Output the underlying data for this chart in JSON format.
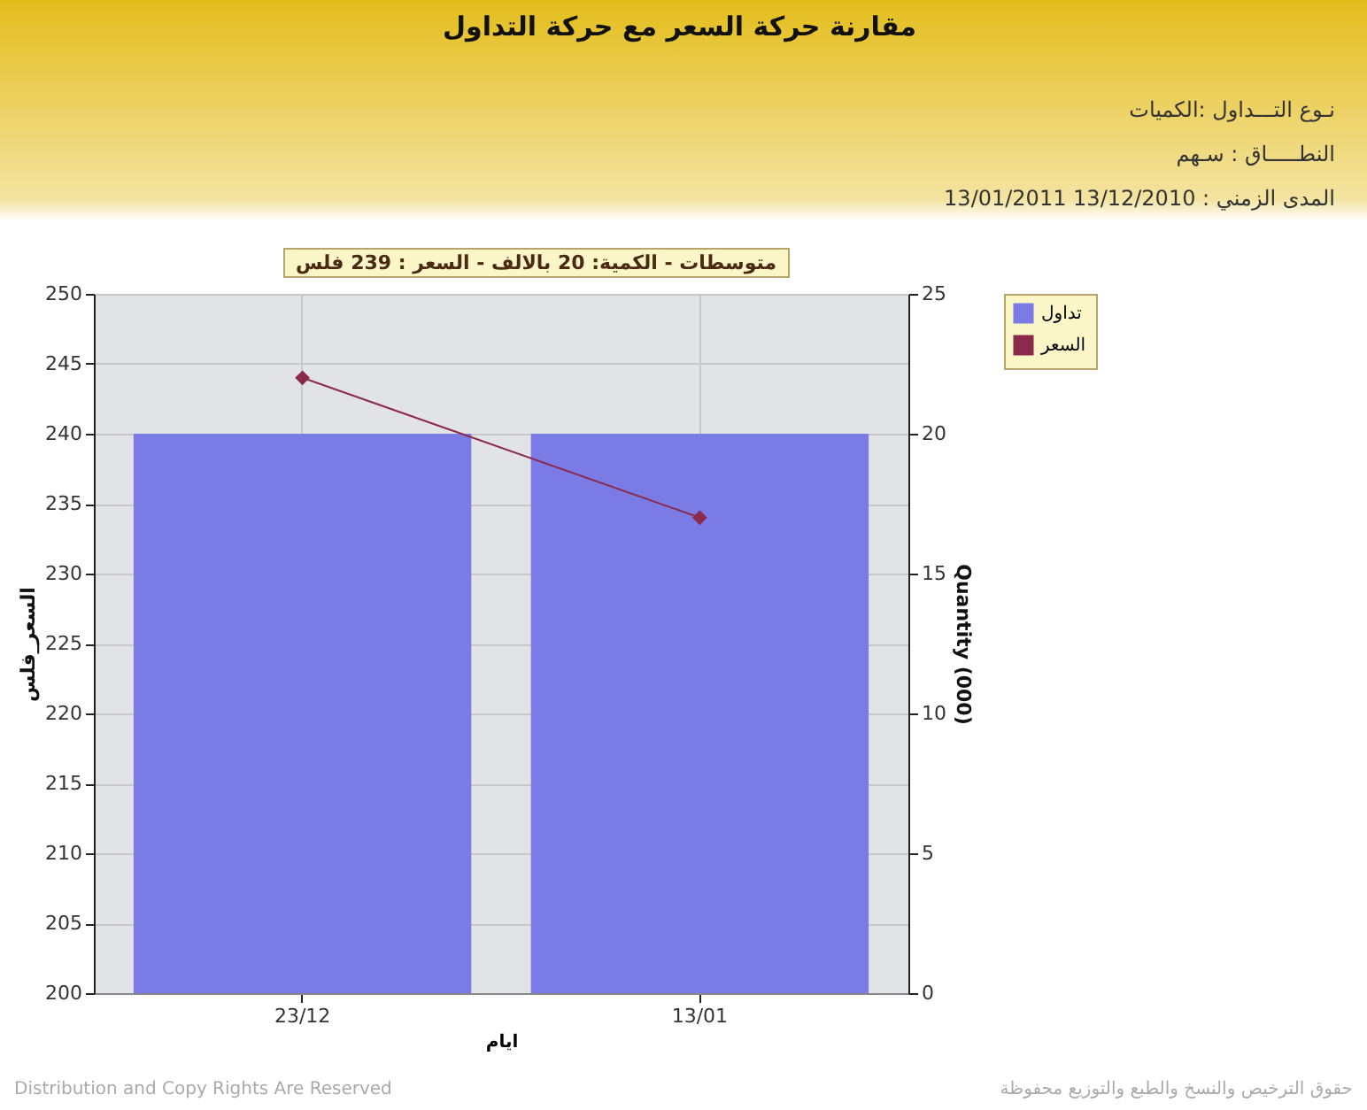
{
  "chart_data": {
    "type": "bar",
    "title": "مقارنة حركة السعر مع حركة التداول",
    "subtitle": [
      "نـوع التـــداول :الكميات",
      "النطـــــاق : سـهم",
      "المدى الزمني :   13/12/2010 13/01/2011"
    ],
    "categories": [
      "23/12",
      "13/01"
    ],
    "series": [
      {
        "name": "تداول",
        "axis": "y2",
        "color": "#7b7be6",
        "values": [
          20,
          20
        ]
      },
      {
        "name": "السعر",
        "type": "line",
        "color": "#8b2a4a",
        "values": [
          244,
          234
        ]
      }
    ],
    "xlabel": "ايام",
    "ylabel": "السعر_فلس",
    "y2label": "Quantity (000)",
    "ylim": [
      200,
      250
    ],
    "yticks": [
      200,
      205,
      210,
      215,
      220,
      225,
      230,
      235,
      240,
      245,
      250
    ],
    "y2lim": [
      0,
      25
    ],
    "y2ticks": [
      0,
      5,
      10,
      15,
      20,
      25
    ],
    "grid": true,
    "legend": "top right",
    "marker": "diamond",
    "annotations": [
      "متوسطات - الكمية: 20 بالالف  - السعر : 239 فلس",
      "Distribution and Copy Rights Are Reserved",
      "حقوق الترخيص والنسخ والطبع والتوزيع محفوظة"
    ]
  }
}
